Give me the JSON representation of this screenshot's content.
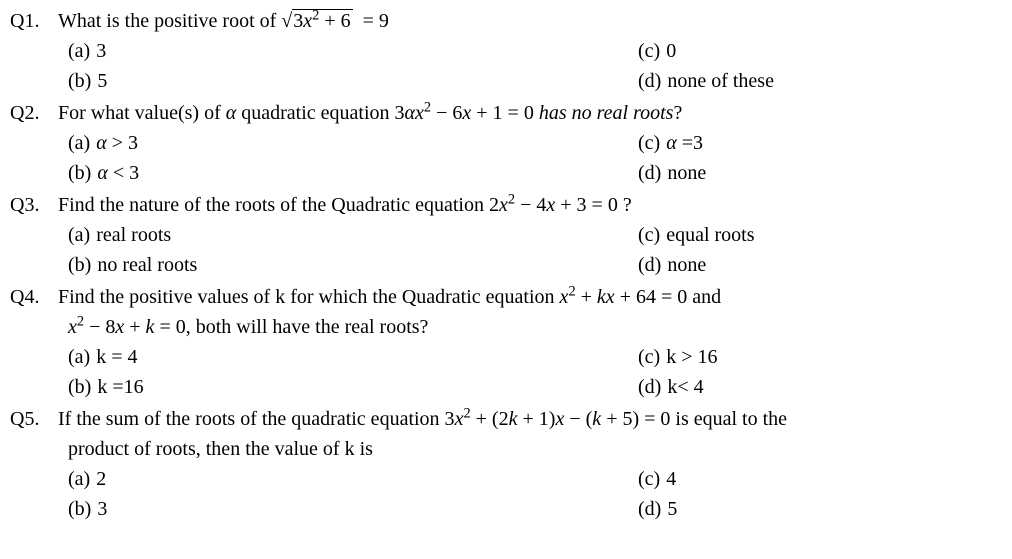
{
  "questions": [
    {
      "label": "Q1.",
      "text_pre": "What is the positive root of ",
      "math_html": "<span class='sqrt'><span class='radicand'>3<span class='italic'>x</span><sup>2</sup> + 6</span></span>&nbsp; = 9",
      "text_post": "",
      "continuation": "",
      "options": [
        {
          "label": "(a)",
          "text": "3"
        },
        {
          "label": "(c)",
          "text": "0"
        },
        {
          "label": "(b)",
          "text": "5"
        },
        {
          "label": "(d)",
          "text": "none of these"
        }
      ]
    },
    {
      "label": "Q2.",
      "text_pre": " For what value(s) of ",
      "math_html": "<span class='italic'>α</span> quadratic equation 3<span class='italic'>αx</span><sup>2</sup> − 6<span class='italic'>x</span> + 1 = 0 <span class='italic'>has no real roots</span>?",
      "text_post": "",
      "continuation": "",
      "options": [
        {
          "label": "(a)",
          "text_html": "<span class='italic'>α</span> > 3"
        },
        {
          "label": "(c)",
          "text_html": "<span class='italic'>α</span> =3"
        },
        {
          "label": "(b)",
          "text_html": "<span class='italic'>α</span> < 3"
        },
        {
          "label": "(d)",
          "text": "none"
        }
      ]
    },
    {
      "label": "Q3.",
      "text_pre": "  Find the nature of the roots of the Quadratic equation ",
      "math_html": "2<span class='italic'>x</span><sup>2</sup> − 4<span class='italic'>x</span> + 3 = 0 ?",
      "text_post": "",
      "continuation": "",
      "options": [
        {
          "label": "(a)",
          "text": "real roots"
        },
        {
          "label": "(c)",
          "text": "equal roots"
        },
        {
          "label": "(b)",
          "text": "no real roots"
        },
        {
          "label": "(d)",
          "text": "none"
        }
      ]
    },
    {
      "label": "Q4.",
      "text_pre": "  Find the positive values of k for which the Quadratic equation ",
      "math_html": "<span class='italic'>x</span><sup>2</sup> + <span class='italic'>kx</span> + 64 = 0 and",
      "text_post": "",
      "continuation_html": "<span class='italic'>x</span><sup>2</sup> − 8<span class='italic'>x</span> + <span class='italic'>k</span> = 0, both will have the real roots?",
      "options": [
        {
          "label": "(a)",
          "text": "k = 4"
        },
        {
          "label": "(c)",
          "text": "k > 16"
        },
        {
          "label": "(b)",
          "text": "k =16"
        },
        {
          "label": "(d)",
          "text": "k< 4"
        }
      ]
    },
    {
      "label": "Q5.",
      "text_pre": " If the sum of the roots of the quadratic equation ",
      "math_html": "3<span class='italic'>x</span><sup>2</sup> + (2<span class='italic'>k</span> + 1)<span class='italic'>x</span> − (<span class='italic'>k</span> + 5) = 0 is equal to the",
      "text_post": "",
      "continuation_html": "product of roots, then the value of k is",
      "options": [
        {
          "label": "(a)",
          "text": "2"
        },
        {
          "label": "(c)",
          "text": "4"
        },
        {
          "label": "(b)",
          "text": "3"
        },
        {
          "label": "(d)",
          "text": "5"
        }
      ]
    }
  ]
}
